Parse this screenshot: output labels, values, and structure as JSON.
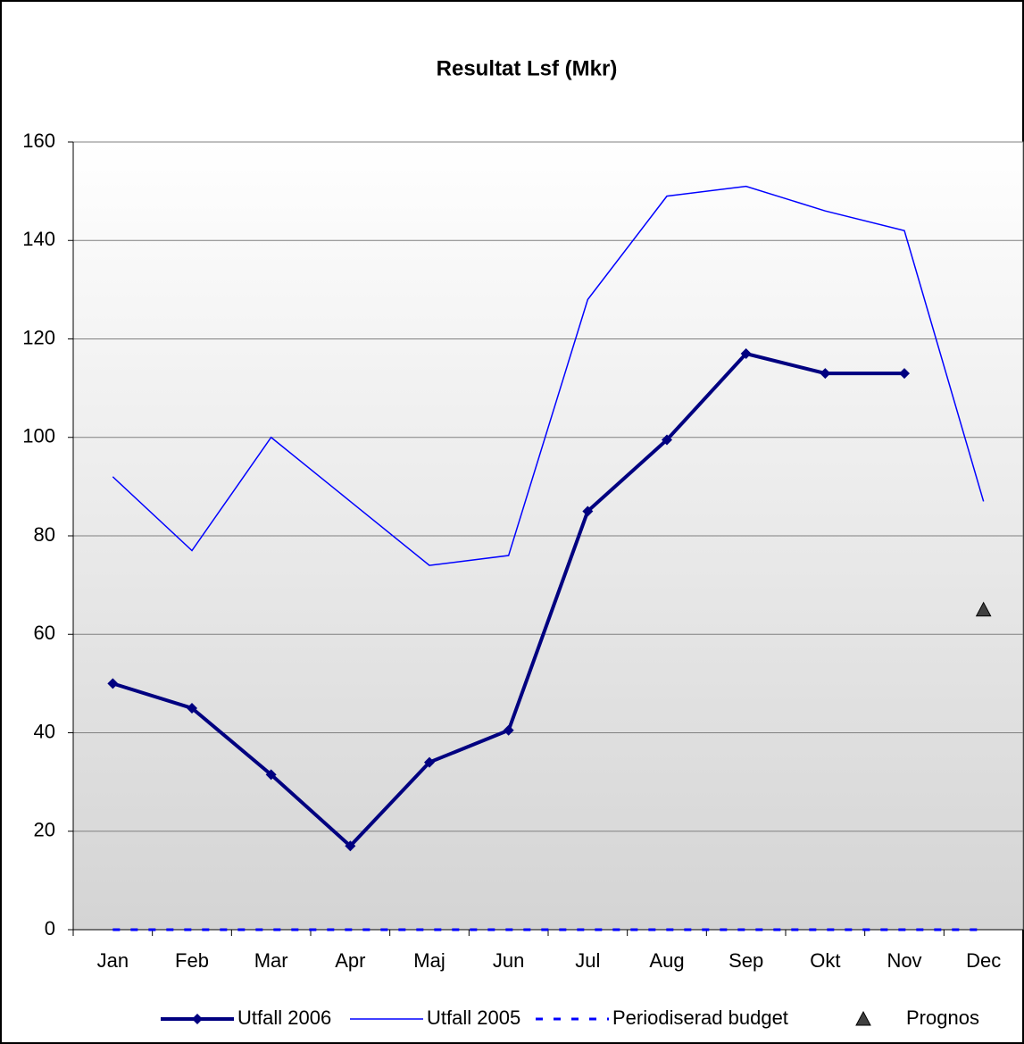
{
  "chart_data": {
    "type": "line",
    "title": "Resultat Lsf (Mkr)",
    "categories": [
      "Jan",
      "Feb",
      "Mar",
      "Apr",
      "Maj",
      "Jun",
      "Jul",
      "Aug",
      "Sep",
      "Okt",
      "Nov",
      "Dec"
    ],
    "series": [
      {
        "name": "Utfall 2006",
        "color": "#000080",
        "values": [
          50,
          45,
          31.5,
          17,
          34,
          40.5,
          85,
          99.5,
          117,
          113,
          113,
          null
        ]
      },
      {
        "name": "Utfall 2005",
        "color": "#0000ff",
        "values": [
          92,
          77,
          100,
          87,
          74,
          76,
          128,
          149,
          151,
          146,
          142,
          87
        ]
      },
      {
        "name": "Periodiserad budget",
        "color": "#0000ff",
        "values": [
          0,
          0,
          0,
          0,
          0,
          0,
          0,
          0,
          0,
          0,
          0,
          0
        ]
      },
      {
        "name": "Prognos",
        "color": "#404040",
        "values": [
          null,
          null,
          null,
          null,
          null,
          null,
          null,
          null,
          null,
          null,
          null,
          65
        ]
      }
    ],
    "ylim": [
      0,
      160
    ],
    "yticks": [
      0,
      20,
      40,
      60,
      80,
      100,
      120,
      140,
      160
    ],
    "grid": true
  }
}
